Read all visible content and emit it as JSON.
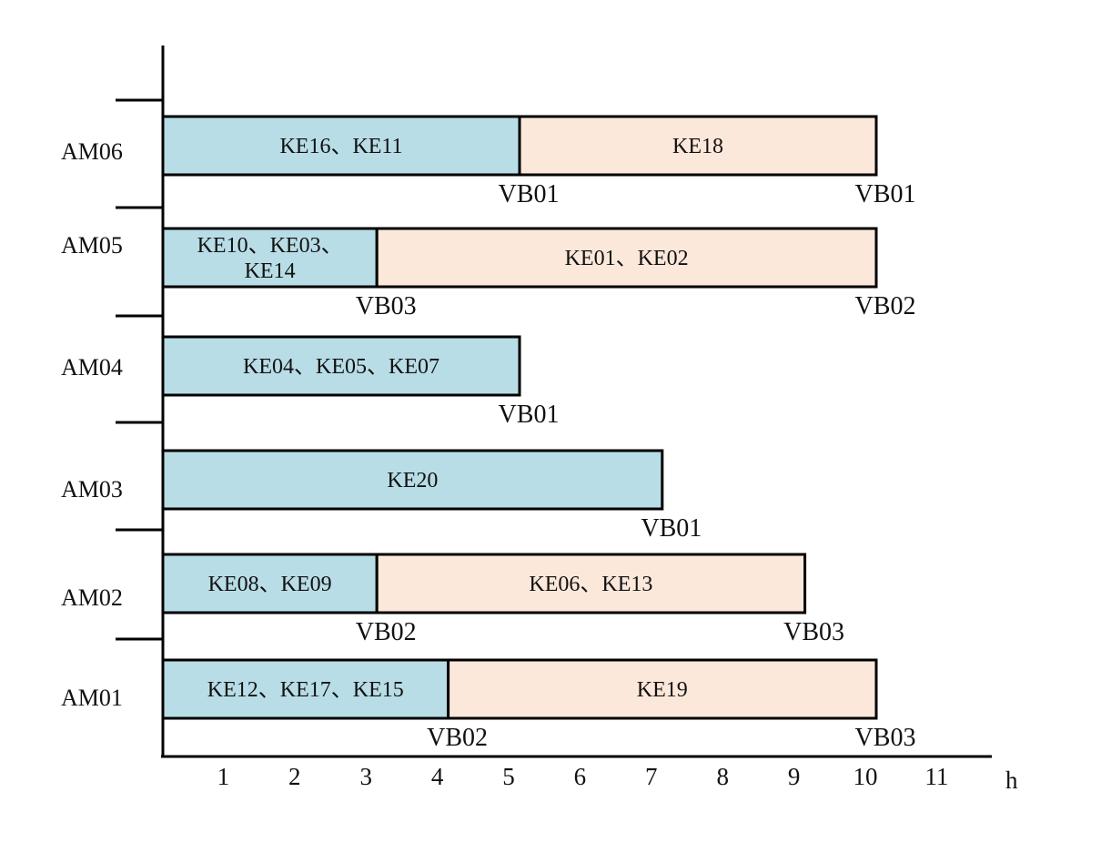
{
  "chart_data": {
    "type": "gantt",
    "x_unit_label": "h",
    "x_ticks": [
      1,
      2,
      3,
      4,
      5,
      6,
      7,
      8,
      9,
      10,
      11
    ],
    "xlim": [
      0,
      11
    ],
    "grid": false,
    "colors": {
      "first_segment": "#b8dde6",
      "second_segment": "#fbe8da",
      "outline": "#000000"
    },
    "rows": [
      {
        "name": "AM06",
        "segments": [
          {
            "start": 0,
            "end": 5,
            "lines": [
              "KE16、KE11"
            ],
            "end_label": "VB01"
          },
          {
            "start": 5,
            "end": 10,
            "lines": [
              "KE18"
            ],
            "end_label": "VB01"
          }
        ]
      },
      {
        "name": "AM05",
        "segments": [
          {
            "start": 0,
            "end": 3,
            "lines": [
              "KE10、KE03、",
              "KE14"
            ],
            "end_label": "VB03"
          },
          {
            "start": 3,
            "end": 10,
            "lines": [
              "KE01、KE02"
            ],
            "end_label": "VB02"
          }
        ]
      },
      {
        "name": "AM04",
        "segments": [
          {
            "start": 0,
            "end": 5,
            "lines": [
              "KE04、KE05、KE07"
            ],
            "end_label": "VB01"
          }
        ]
      },
      {
        "name": "AM03",
        "segments": [
          {
            "start": 0,
            "end": 7,
            "lines": [
              "KE20"
            ],
            "end_label": "VB01"
          }
        ]
      },
      {
        "name": "AM02",
        "segments": [
          {
            "start": 0,
            "end": 3,
            "lines": [
              "KE08、KE09"
            ],
            "end_label": "VB02"
          },
          {
            "start": 3,
            "end": 9,
            "lines": [
              "KE06、KE13"
            ],
            "end_label": "VB03"
          }
        ]
      },
      {
        "name": "AM01",
        "segments": [
          {
            "start": 0,
            "end": 4,
            "lines": [
              "KE12、KE17、KE15"
            ],
            "end_label": "VB02"
          },
          {
            "start": 4,
            "end": 10,
            "lines": [
              "KE19"
            ],
            "end_label": "VB03"
          }
        ]
      }
    ]
  }
}
